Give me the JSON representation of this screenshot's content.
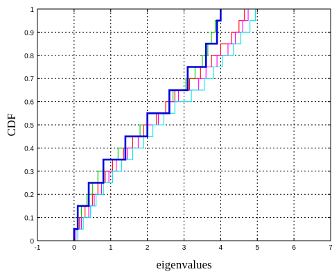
{
  "chart_data": {
    "type": "line",
    "step": true,
    "title": "",
    "xlabel": "eigenvalues",
    "ylabel": "CDF",
    "xlim": [
      -1,
      7
    ],
    "ylim": [
      0,
      1
    ],
    "xticks": [
      -1,
      0,
      1,
      2,
      3,
      4,
      5,
      6,
      7
    ],
    "yticks": [
      0,
      0.1,
      0.2,
      0.3,
      0.4,
      0.5,
      0.6,
      0.7,
      0.8,
      0.9,
      1
    ],
    "grid": true,
    "grid_style": "dotted",
    "legend": "none",
    "series": [
      {
        "color": "#00cc00",
        "line_width": "thin",
        "steps": [
          {
            "x": 0.0,
            "y": 0.05
          },
          {
            "x": 0.1,
            "y": 0.1
          },
          {
            "x": 0.2,
            "y": 0.15
          },
          {
            "x": 0.35,
            "y": 0.2
          },
          {
            "x": 0.5,
            "y": 0.25
          },
          {
            "x": 0.65,
            "y": 0.3
          },
          {
            "x": 0.8,
            "y": 0.35
          },
          {
            "x": 1.2,
            "y": 0.4
          },
          {
            "x": 1.4,
            "y": 0.45
          },
          {
            "x": 1.8,
            "y": 0.5
          },
          {
            "x": 2.0,
            "y": 0.55
          },
          {
            "x": 2.6,
            "y": 0.6
          },
          {
            "x": 2.7,
            "y": 0.65
          },
          {
            "x": 3.05,
            "y": 0.7
          },
          {
            "x": 3.3,
            "y": 0.75
          },
          {
            "x": 3.5,
            "y": 0.8
          },
          {
            "x": 3.65,
            "y": 0.85
          },
          {
            "x": 3.75,
            "y": 0.9
          },
          {
            "x": 3.85,
            "y": 0.95
          },
          {
            "x": 4.0,
            "y": 1.0
          }
        ]
      },
      {
        "color": "#ff0000",
        "line_width": "thin",
        "steps": [
          {
            "x": 0.05,
            "y": 0.05
          },
          {
            "x": 0.15,
            "y": 0.1
          },
          {
            "x": 0.3,
            "y": 0.15
          },
          {
            "x": 0.5,
            "y": 0.2
          },
          {
            "x": 0.65,
            "y": 0.25
          },
          {
            "x": 0.85,
            "y": 0.3
          },
          {
            "x": 1.05,
            "y": 0.35
          },
          {
            "x": 1.35,
            "y": 0.4
          },
          {
            "x": 1.6,
            "y": 0.45
          },
          {
            "x": 1.9,
            "y": 0.5
          },
          {
            "x": 2.25,
            "y": 0.55
          },
          {
            "x": 2.5,
            "y": 0.6
          },
          {
            "x": 2.75,
            "y": 0.65
          },
          {
            "x": 3.15,
            "y": 0.7
          },
          {
            "x": 3.45,
            "y": 0.75
          },
          {
            "x": 3.75,
            "y": 0.8
          },
          {
            "x": 4.0,
            "y": 0.85
          },
          {
            "x": 4.3,
            "y": 0.9
          },
          {
            "x": 4.5,
            "y": 0.95
          },
          {
            "x": 4.65,
            "y": 1.0
          }
        ]
      },
      {
        "color": "#ff00ff",
        "line_width": "thin",
        "steps": [
          {
            "x": 0.05,
            "y": 0.05
          },
          {
            "x": 0.2,
            "y": 0.1
          },
          {
            "x": 0.4,
            "y": 0.15
          },
          {
            "x": 0.55,
            "y": 0.2
          },
          {
            "x": 0.75,
            "y": 0.25
          },
          {
            "x": 0.95,
            "y": 0.3
          },
          {
            "x": 1.15,
            "y": 0.35
          },
          {
            "x": 1.45,
            "y": 0.4
          },
          {
            "x": 1.75,
            "y": 0.45
          },
          {
            "x": 2.0,
            "y": 0.5
          },
          {
            "x": 2.3,
            "y": 0.55
          },
          {
            "x": 2.6,
            "y": 0.6
          },
          {
            "x": 2.85,
            "y": 0.65
          },
          {
            "x": 3.4,
            "y": 0.7
          },
          {
            "x": 3.6,
            "y": 0.75
          },
          {
            "x": 3.9,
            "y": 0.8
          },
          {
            "x": 4.2,
            "y": 0.85
          },
          {
            "x": 4.4,
            "y": 0.9
          },
          {
            "x": 4.6,
            "y": 0.95
          },
          {
            "x": 4.75,
            "y": 1.0
          }
        ]
      },
      {
        "color": "#00e5e5",
        "line_width": "thin",
        "steps": [
          {
            "x": 0.1,
            "y": 0.05
          },
          {
            "x": 0.25,
            "y": 0.1
          },
          {
            "x": 0.45,
            "y": 0.15
          },
          {
            "x": 0.6,
            "y": 0.2
          },
          {
            "x": 0.8,
            "y": 0.25
          },
          {
            "x": 1.05,
            "y": 0.3
          },
          {
            "x": 1.3,
            "y": 0.35
          },
          {
            "x": 1.6,
            "y": 0.4
          },
          {
            "x": 1.9,
            "y": 0.45
          },
          {
            "x": 2.15,
            "y": 0.5
          },
          {
            "x": 2.45,
            "y": 0.55
          },
          {
            "x": 2.75,
            "y": 0.6
          },
          {
            "x": 3.2,
            "y": 0.65
          },
          {
            "x": 3.55,
            "y": 0.7
          },
          {
            "x": 3.8,
            "y": 0.75
          },
          {
            "x": 4.05,
            "y": 0.8
          },
          {
            "x": 4.35,
            "y": 0.85
          },
          {
            "x": 4.55,
            "y": 0.9
          },
          {
            "x": 4.8,
            "y": 0.95
          },
          {
            "x": 4.95,
            "y": 1.0
          }
        ]
      },
      {
        "color": "#0000dd",
        "line_width": "thick",
        "steps": [
          {
            "x": 0.0,
            "y": 0.05
          },
          {
            "x": 0.1,
            "y": 0.15
          },
          {
            "x": 0.4,
            "y": 0.25
          },
          {
            "x": 0.8,
            "y": 0.35
          },
          {
            "x": 1.4,
            "y": 0.45
          },
          {
            "x": 2.0,
            "y": 0.55
          },
          {
            "x": 2.6,
            "y": 0.65
          },
          {
            "x": 3.1,
            "y": 0.75
          },
          {
            "x": 3.6,
            "y": 0.85
          },
          {
            "x": 3.9,
            "y": 0.95
          },
          {
            "x": 4.0,
            "y": 1.0
          }
        ]
      }
    ]
  }
}
